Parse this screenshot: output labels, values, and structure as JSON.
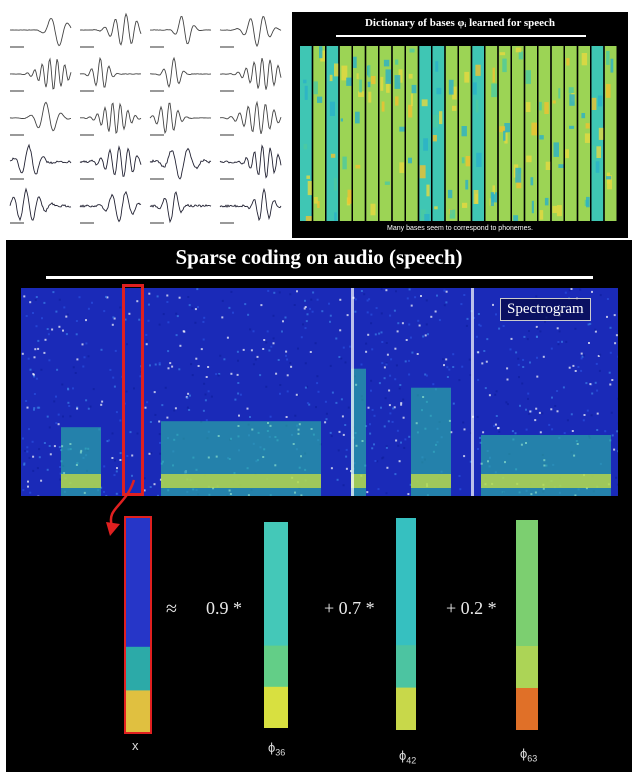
{
  "dictionary": {
    "title": "Dictionary of bases φᵢ learned for speech",
    "caption": "Many bases seem to correspond to phonemes."
  },
  "main": {
    "title": "Sparse coding on audio (speech)",
    "spectrogram_label": "Spectrogram",
    "approx_symbol": "≈",
    "coefficients": [
      "0.9 *",
      "+ 0.7 *",
      "+ 0.2 *"
    ],
    "x_label": "x",
    "basis_labels": [
      {
        "symbol": "ϕ",
        "sub": "36"
      },
      {
        "symbol": "ϕ",
        "sub": "42"
      },
      {
        "symbol": "ϕ",
        "sub": "63"
      }
    ]
  }
}
